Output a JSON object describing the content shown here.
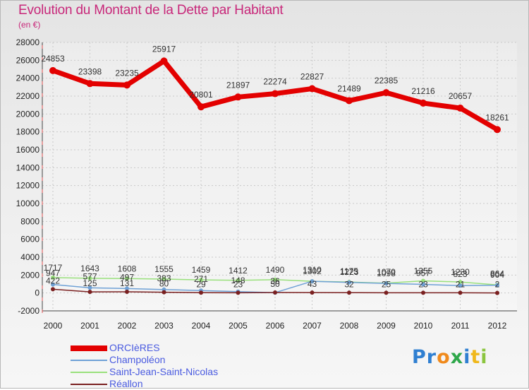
{
  "header": {
    "title": "Evolution du Montant de la Dette par Habitant",
    "unit": "(en €)"
  },
  "logo": {
    "letters": [
      "P",
      "r",
      "o",
      "x",
      "i",
      "t",
      "i"
    ]
  },
  "colors": {
    "title": "#c8287a",
    "legend_text": "#4a5be0",
    "logo": [
      "#2f7fd1",
      "#2f7fd1",
      "#f08a1c",
      "#2ea74a",
      "#2f7fd1",
      "#f0b81c",
      "#8bc53f"
    ]
  },
  "chart_data": {
    "type": "line",
    "title": "Evolution du Montant de la Dette par Habitant",
    "ylabel": "(en €)",
    "xlabel": "",
    "ylim": [
      -2000,
      28000
    ],
    "yticks": [
      -2000,
      0,
      2000,
      4000,
      6000,
      8000,
      10000,
      12000,
      14000,
      16000,
      18000,
      20000,
      22000,
      24000,
      26000,
      28000
    ],
    "grid": true,
    "legend_position": "bottom-left",
    "x": [
      "2000",
      "2001",
      "2002",
      "2003",
      "2004",
      "2005",
      "2006",
      "2007",
      "2008",
      "2009",
      "2010",
      "2011",
      "2012"
    ],
    "series": [
      {
        "name": "ORCIèRES",
        "color": "#e30000",
        "values": [
          24853,
          23398,
          23235,
          25917,
          20801,
          21897,
          22274,
          22827,
          21489,
          22385,
          21216,
          20657,
          18261
        ],
        "labels": [
          "24853",
          "23398",
          "23235",
          "25917",
          "20801",
          "21897",
          "22274",
          "22827",
          "21489",
          "22385",
          "21216",
          "20657",
          "18261"
        ]
      },
      {
        "name": "Champoléon",
        "color": "#6fa1d6",
        "values": [
          947,
          577,
          497,
          383,
          271,
          148,
          36,
          1310,
          1175,
          1070,
          957,
          823,
          864
        ],
        "labels": [
          "947",
          "577",
          "497",
          "383",
          "271",
          "148",
          "36",
          "1310",
          "1175",
          "1070",
          "957",
          "823",
          "864"
        ]
      },
      {
        "name": "Saint-Jean-Saint-Nicolas",
        "color": "#99e07c",
        "values": [
          1717,
          1643,
          1608,
          1555,
          1459,
          1412,
          1490,
          1302,
          1223,
          1098,
          1355,
          1230,
          904
        ],
        "labels": [
          "1717",
          "1643",
          "1608",
          "1555",
          "1459",
          "1412",
          "1490",
          "1302",
          "1223",
          "1098",
          "1355",
          "1230",
          "904"
        ]
      },
      {
        "name": "Réallon",
        "color": "#7a2020",
        "values": [
          422,
          125,
          131,
          80,
          29,
          23,
          50,
          43,
          32,
          25,
          23,
          21,
          2
        ],
        "labels": [
          "422",
          "125",
          "131",
          "80",
          "29",
          "23",
          "50",
          "43",
          "32",
          "25",
          "23",
          "21",
          "2"
        ]
      }
    ]
  }
}
